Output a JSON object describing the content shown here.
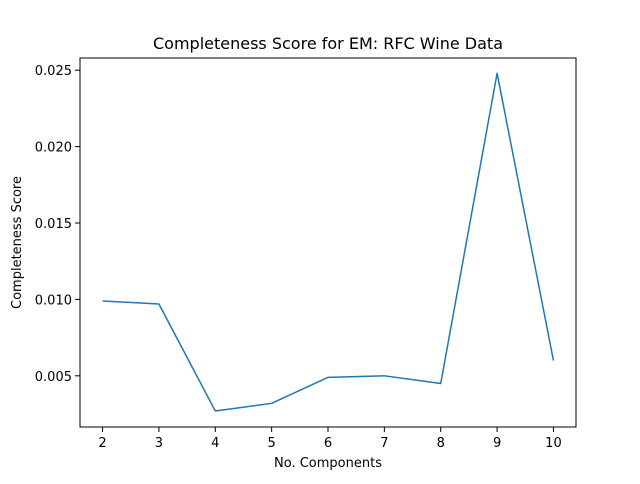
{
  "chart_data": {
    "type": "line",
    "title": "Completeness Score for EM: RFC Wine Data",
    "xlabel": "No. Components",
    "ylabel": "Completeness Score",
    "x": [
      2,
      3,
      4,
      5,
      6,
      7,
      8,
      9,
      10
    ],
    "series": [
      {
        "values": [
          0.0099,
          0.0097,
          0.0027,
          0.0032,
          0.0049,
          0.005,
          0.0045,
          0.0248,
          0.006
        ],
        "color": "#1f77b4"
      }
    ],
    "xticks": [
      "2",
      "3",
      "4",
      "5",
      "6",
      "7",
      "8",
      "9",
      "10"
    ],
    "yticks": [
      "0.005",
      "0.010",
      "0.015",
      "0.020",
      "0.025"
    ],
    "xlim": [
      1.6,
      10.4
    ],
    "ylim": [
      0.00165,
      0.0258
    ],
    "grid": false
  }
}
